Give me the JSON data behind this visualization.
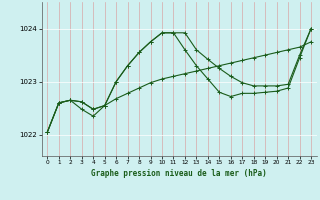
{
  "background_color": "#cff0f0",
  "grid_color": "#b0dede",
  "line_color": "#1a5c1a",
  "xlabel": "Graphe pression niveau de la mer (hPa)",
  "ylim": [
    1021.6,
    1024.5
  ],
  "xlim": [
    -0.5,
    23.5
  ],
  "yticks": [
    1022,
    1023,
    1024
  ],
  "xticks": [
    0,
    1,
    2,
    3,
    4,
    5,
    6,
    7,
    8,
    9,
    10,
    11,
    12,
    13,
    14,
    15,
    16,
    17,
    18,
    19,
    20,
    21,
    22,
    23
  ],
  "line1_x": [
    0,
    1,
    2,
    3,
    4,
    5,
    6,
    7,
    8,
    9,
    10,
    11,
    12,
    13,
    14,
    15,
    16,
    17,
    18,
    19,
    20,
    21,
    22,
    23
  ],
  "line1_y": [
    1022.05,
    1022.6,
    1022.65,
    1022.62,
    1022.48,
    1022.55,
    1022.68,
    1022.78,
    1022.88,
    1022.98,
    1023.05,
    1023.1,
    1023.15,
    1023.2,
    1023.25,
    1023.3,
    1023.35,
    1023.4,
    1023.45,
    1023.5,
    1023.55,
    1023.6,
    1023.65,
    1023.75
  ],
  "line2_x": [
    0,
    1,
    2,
    3,
    4,
    5,
    6,
    7,
    8,
    9,
    10,
    11,
    12,
    13,
    14,
    15,
    16,
    17,
    18,
    19,
    20,
    21,
    22,
    23
  ],
  "line2_y": [
    1022.05,
    1022.6,
    1022.65,
    1022.62,
    1022.48,
    1022.55,
    1023.0,
    1023.3,
    1023.55,
    1023.75,
    1023.92,
    1023.92,
    1023.92,
    1023.6,
    1023.42,
    1023.25,
    1023.1,
    1022.98,
    1022.92,
    1022.92,
    1022.92,
    1022.95,
    1023.5,
    1024.0
  ],
  "line3_x": [
    0,
    1,
    2,
    3,
    4,
    5,
    6,
    7,
    8,
    9,
    10,
    11,
    12,
    13,
    14,
    15,
    16,
    17,
    18,
    19,
    20,
    21,
    22,
    23
  ],
  "line3_y": [
    1022.05,
    1022.6,
    1022.65,
    1022.48,
    1022.35,
    1022.55,
    1023.0,
    1023.3,
    1023.55,
    1023.75,
    1023.92,
    1023.92,
    1023.6,
    1023.3,
    1023.05,
    1022.8,
    1022.72,
    1022.78,
    1022.78,
    1022.8,
    1022.82,
    1022.88,
    1023.45,
    1024.0
  ]
}
